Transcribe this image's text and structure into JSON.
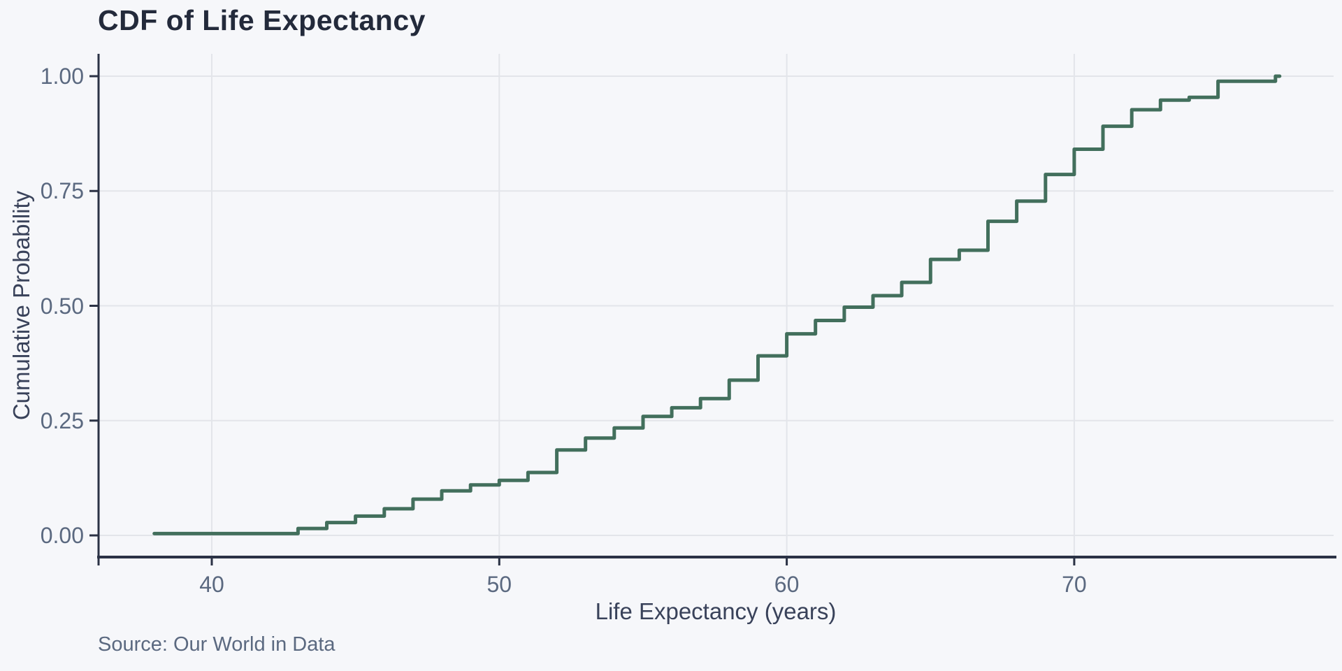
{
  "page": {
    "background": "#f6f7fa"
  },
  "chart": {
    "title": "CDF of Life Expectancy",
    "source": "Source: Our World in Data",
    "x_axis": {
      "label": "Life Expectancy (years)",
      "ticks": [
        "40",
        "50",
        "60",
        "70"
      ],
      "tick_values": [
        40,
        50,
        60,
        70
      ]
    },
    "y_axis": {
      "label": "Cumulative Probability",
      "ticks": [
        "0.00",
        "0.25",
        "0.50",
        "0.75",
        "1.00"
      ],
      "tick_values": [
        0,
        0.25,
        0.5,
        0.75,
        1
      ]
    },
    "colors": {
      "line": "#426f5c",
      "grid": "#e3e5ea",
      "axis": "#2b3245",
      "title_text": "#232a3b",
      "tick_text": "#5b6980",
      "axis_label_text": "#39425a",
      "background": "#f6f7fa"
    }
  },
  "chart_data": {
    "type": "line",
    "subtype": "step-ecdf",
    "title": "CDF of Life Expectancy",
    "xlabel": "Life Expectancy (years)",
    "ylabel": "Cumulative Probability",
    "xlim": [
      36.1,
      79.0
    ],
    "ylim": [
      0,
      1
    ],
    "x_ticks": [
      40,
      50,
      60,
      70
    ],
    "y_ticks": [
      0,
      0.25,
      0.5,
      0.75,
      1
    ],
    "grid": true,
    "legend": false,
    "points_note": "cumulative probability after the step at each life-expectancy value (years)",
    "points": [
      [
        38,
        0.004
      ],
      [
        43,
        0.015
      ],
      [
        44,
        0.028
      ],
      [
        45,
        0.042
      ],
      [
        46,
        0.058
      ],
      [
        47,
        0.079
      ],
      [
        48,
        0.097
      ],
      [
        49,
        0.11
      ],
      [
        50,
        0.12
      ],
      [
        51,
        0.137
      ],
      [
        52,
        0.186
      ],
      [
        53,
        0.212
      ],
      [
        54,
        0.234
      ],
      [
        55,
        0.259
      ],
      [
        56,
        0.278
      ],
      [
        57,
        0.298
      ],
      [
        58,
        0.338
      ],
      [
        59,
        0.391
      ],
      [
        60,
        0.439
      ],
      [
        61,
        0.468
      ],
      [
        62,
        0.497
      ],
      [
        63,
        0.522
      ],
      [
        64,
        0.551
      ],
      [
        65,
        0.601
      ],
      [
        66,
        0.621
      ],
      [
        67,
        0.684
      ],
      [
        68,
        0.728
      ],
      [
        69,
        0.786
      ],
      [
        70,
        0.841
      ],
      [
        71,
        0.891
      ],
      [
        72,
        0.927
      ],
      [
        73,
        0.948
      ],
      [
        74,
        0.954
      ],
      [
        75,
        0.989
      ],
      [
        77,
        1.0
      ]
    ]
  }
}
